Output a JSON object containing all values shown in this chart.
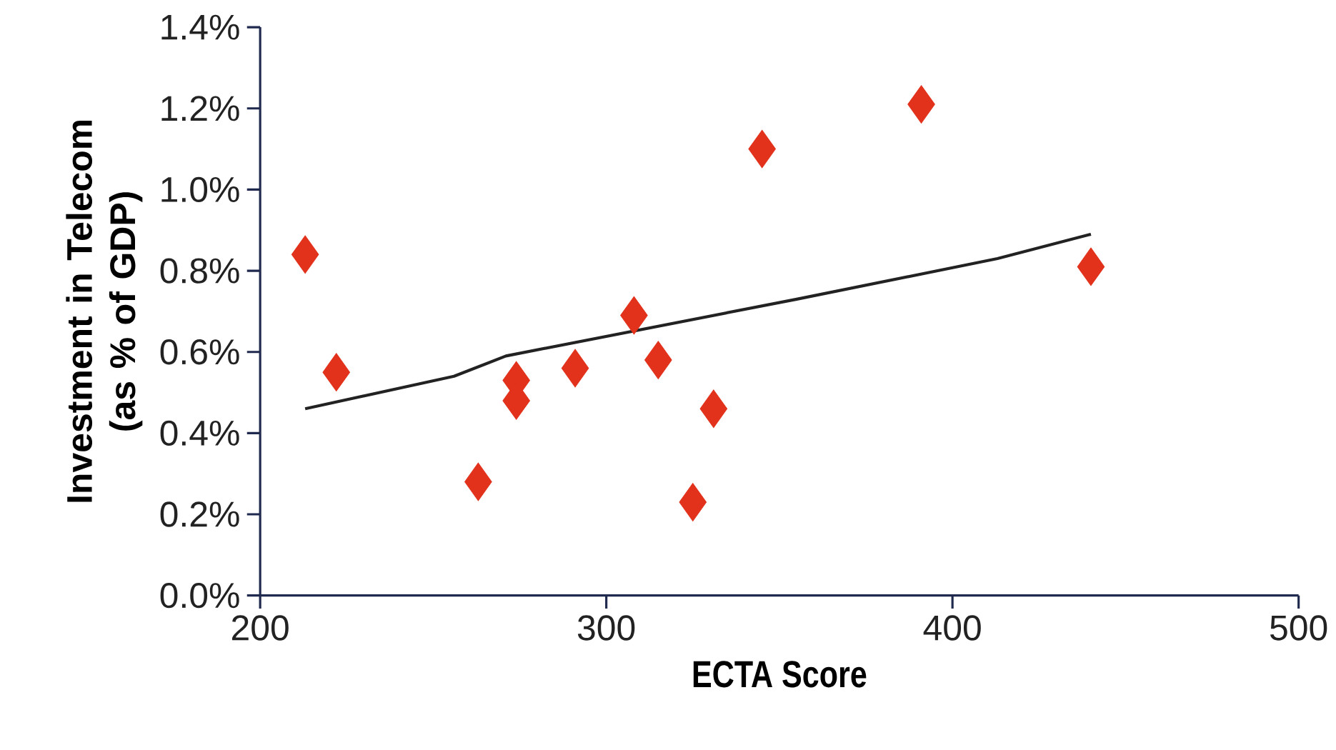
{
  "chart_data": {
    "type": "scatter",
    "xlabel": "ECTA Score",
    "ylabel": "Investment in Telecom\n(as % of GDP)",
    "xlim": [
      200,
      500
    ],
    "xticks": [
      200,
      300,
      400,
      500
    ],
    "ylim": [
      0,
      1.4
    ],
    "yticks": [
      {
        "value": 0,
        "label": "0.0%"
      },
      {
        "value": 0.2,
        "label": "0.2%"
      },
      {
        "value": 0.4,
        "label": "0.4%"
      },
      {
        "value": 0.6,
        "label": "0.6%"
      },
      {
        "value": 0.8,
        "label": "0.8%"
      },
      {
        "value": 1.0,
        "label": "1.0%"
      },
      {
        "value": 1.2,
        "label": "1.2%"
      },
      {
        "value": 1.4,
        "label": "1.4%"
      }
    ],
    "series": [
      {
        "type": "scatter",
        "marker": "diamond",
        "color": "#e2321c",
        "x": [
          213,
          222,
          263,
          274,
          274,
          291,
          308,
          315,
          325,
          331,
          345,
          391,
          440
        ],
        "values": [
          0.84,
          0.55,
          0.28,
          0.53,
          0.48,
          0.56,
          0.69,
          0.58,
          0.23,
          0.46,
          1.1,
          1.21,
          0.81
        ]
      },
      {
        "type": "line",
        "marker": "none",
        "line_style": "solid",
        "color": "#222222",
        "x": [
          213,
          256,
          271,
          355,
          413,
          440
        ],
        "values": [
          0.46,
          0.54,
          0.59,
          0.73,
          0.83,
          0.89
        ]
      }
    ]
  }
}
